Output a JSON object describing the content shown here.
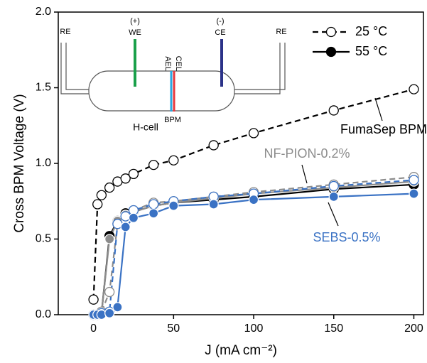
{
  "chart_data": {
    "type": "line",
    "xlabel": "J (mA cm⁻²)",
    "ylabel": "Cross BPM Voltage (V)",
    "xlim": [
      -22,
      206
    ],
    "ylim": [
      0,
      2
    ],
    "xticks": [
      0,
      50,
      100,
      150,
      200
    ],
    "yticks": [
      {
        "value": 0,
        "label": "0.0"
      },
      {
        "value": 0.5,
        "label": "0.5"
      },
      {
        "value": 1,
        "label": "1.0"
      },
      {
        "value": 1.5,
        "label": "1.5"
      },
      {
        "value": 2,
        "label": "2.0"
      }
    ],
    "legend_position": "upper right",
    "legend": [
      {
        "label": "25 °C",
        "dashed": true,
        "filled": false
      },
      {
        "label": "55 °C",
        "dashed": false,
        "filled": true
      }
    ],
    "x": [
      0,
      2.5,
      5,
      10,
      15,
      20,
      25,
      37.5,
      50,
      75,
      100,
      150,
      200
    ],
    "series": [
      {
        "name": "FumaSep BPM",
        "color": "#000000",
        "curves": [
          {
            "values": [
              0.1,
              0.73,
              0.79,
              0.84,
              0.88,
              0.9,
              0.93,
              0.99,
              1.02,
              1.12,
              1.2,
              1.35,
              1.49
            ]
          },
          {
            "values": [
              0,
              0,
              0.01,
              0.52,
              0.62,
              0.67,
              0.68,
              0.72,
              0.74,
              0.76,
              0.78,
              0.83,
              0.86
            ]
          }
        ]
      },
      {
        "name": "NF-PION-0.2%",
        "color": "#8c8c8c",
        "curves": [
          {
            "values": [
              0,
              0,
              0.02,
              0.15,
              0.6,
              0.66,
              0.69,
              0.74,
              0.75,
              0.78,
              0.81,
              0.86,
              0.91
            ]
          },
          {
            "values": [
              0,
              0,
              0.01,
              0.5,
              0.62,
              0.66,
              0.68,
              0.72,
              0.74,
              0.77,
              0.8,
              0.84,
              0.88
            ]
          }
        ]
      },
      {
        "name": "SEBS-0.5%",
        "color": "#3a72c4",
        "curves": [
          {
            "values": [
              0,
              0,
              0.01,
              0.02,
              0.6,
              0.65,
              0.69,
              0.73,
              0.75,
              0.78,
              0.8,
              0.85,
              0.89
            ]
          },
          {
            "values": [
              0,
              0,
              0,
              0.01,
              0.05,
              0.58,
              0.64,
              0.67,
              0.72,
              0.73,
              0.76,
              0.78,
              0.8
            ]
          }
        ]
      }
    ],
    "inset": {
      "title": "H-cell",
      "labels": [
        "RE",
        "(+)",
        "WE",
        "(-)",
        "CE",
        "RE",
        "AEL",
        "CEL",
        "BPM"
      ]
    }
  }
}
